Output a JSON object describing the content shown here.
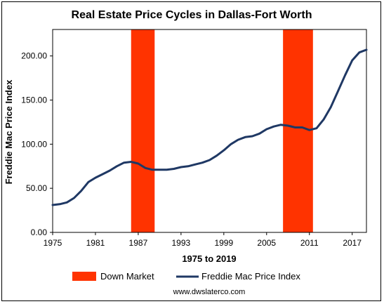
{
  "chart_data": {
    "type": "line",
    "title": "Real Estate Price Cycles in Dallas-Fort Worth",
    "xlabel": "1975 to 2019",
    "ylabel": "Freddie Mac Price Index",
    "xlim": [
      1975,
      2019
    ],
    "ylim": [
      0,
      230
    ],
    "x_ticks": [
      "1975",
      "1981",
      "1987",
      "1993",
      "1999",
      "2005",
      "2011",
      "2017"
    ],
    "y_ticks": [
      "0.00",
      "50.00",
      "100.00",
      "150.00",
      "200.00"
    ],
    "grid": false,
    "legend_position": "bottom",
    "shaded_periods": {
      "name": "Down Market",
      "color": "#ff3300",
      "ranges": [
        [
          1986,
          1989.3
        ],
        [
          2007.3,
          2011.5
        ]
      ]
    },
    "series": [
      {
        "name": "Freddie Mac Price Index",
        "color": "#1f3864",
        "x": [
          1975,
          1976,
          1977,
          1978,
          1979,
          1980,
          1981,
          1982,
          1983,
          1984,
          1985,
          1986,
          1987,
          1988,
          1989,
          1990,
          1991,
          1992,
          1993,
          1994,
          1995,
          1996,
          1997,
          1998,
          1999,
          2000,
          2001,
          2002,
          2003,
          2004,
          2005,
          2006,
          2007,
          2008,
          2009,
          2010,
          2011,
          2012,
          2013,
          2014,
          2015,
          2016,
          2017,
          2018,
          2019
        ],
        "values": [
          31,
          32,
          34,
          39,
          47,
          57,
          62,
          66,
          70,
          75,
          79,
          80,
          78,
          73,
          71,
          71,
          71,
          72,
          74,
          75,
          77,
          79,
          82,
          87,
          93,
          100,
          105,
          108,
          109,
          112,
          117,
          120,
          122,
          121,
          119,
          119,
          116,
          118,
          128,
          142,
          160,
          178,
          195,
          204,
          207
        ]
      }
    ]
  },
  "footer": {
    "credit": "www.dwslaterco.com"
  }
}
